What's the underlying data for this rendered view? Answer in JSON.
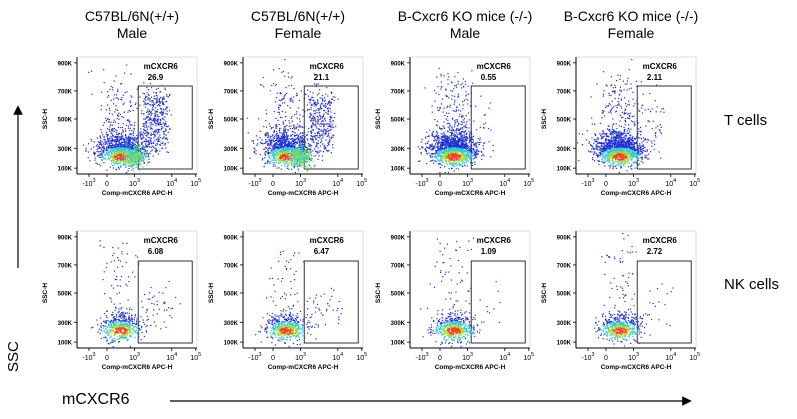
{
  "column_titles": [
    {
      "line1": "C57BL/6N(+/+)",
      "line2": "Male"
    },
    {
      "line1": "C57BL/6N(+/+)",
      "line2": "Female"
    },
    {
      "line1": "B-Cxcr6 KO mice (-/-)",
      "line2": "Male"
    },
    {
      "line1": "B-Cxcr6 KO mice (-/-)",
      "line2": "Female"
    }
  ],
  "row_labels": [
    "T cells",
    "NK cells"
  ],
  "global_y_label": "SSC",
  "global_x_label": "mCXCR6",
  "colors": {
    "low": "#1f2fd0",
    "mid": "#2ec9e0",
    "high_mid": "#9be024",
    "high": "#ff3b1f",
    "axis": "#000000"
  },
  "chart_data": {
    "type": "scatter",
    "subtype": "flow-cytometry-density",
    "x_axis_label": "Comp-mCXCR6 APC-H",
    "y_axis_label": "SSC-H",
    "x_ticks": [
      "-10^3",
      "0",
      "10^3",
      "10^4",
      "10^5"
    ],
    "y_ticks": [
      "100K",
      "300K",
      "500K",
      "700K",
      "900K"
    ],
    "gate_name": "mCXCR6",
    "gate_x_from": "10^3",
    "panels": [
      {
        "row": "T cells",
        "column": "C57BL/6N(+/+) Male",
        "gate_percent": "26.9"
      },
      {
        "row": "T cells",
        "column": "C57BL/6N(+/+) Female",
        "gate_percent": "21.1"
      },
      {
        "row": "T cells",
        "column": "B-Cxcr6 KO mice (-/-) Male",
        "gate_percent": "0.55"
      },
      {
        "row": "T cells",
        "column": "B-Cxcr6 KO mice (-/-) Female",
        "gate_percent": "2.11"
      },
      {
        "row": "NK cells",
        "column": "C57BL/6N(+/+) Male",
        "gate_percent": "6.08"
      },
      {
        "row": "NK cells",
        "column": "C57BL/6N(+/+) Female",
        "gate_percent": "6.47"
      },
      {
        "row": "NK cells",
        "column": "B-Cxcr6 KO mice (-/-) Male",
        "gate_percent": "1.09"
      },
      {
        "row": "NK cells",
        "column": "B-Cxcr6 KO mice (-/-) Female",
        "gate_percent": "2.72"
      }
    ]
  }
}
